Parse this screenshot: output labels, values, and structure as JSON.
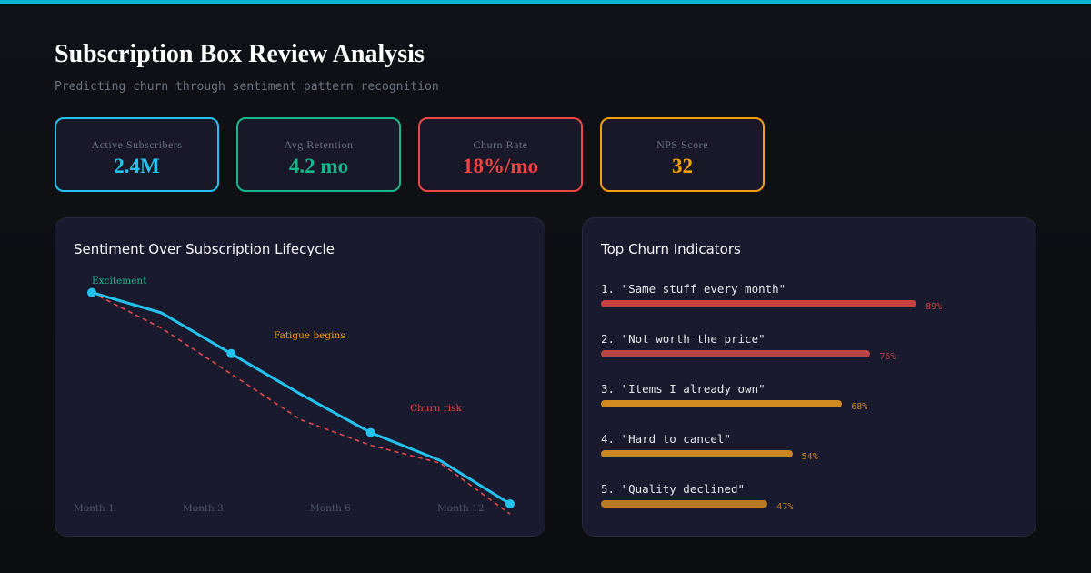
{
  "header": {
    "title": "Subscription Box Review Analysis",
    "subtitle": "Predicting churn through sentiment pattern recognition"
  },
  "kpis": [
    {
      "label": "Active Subscribers",
      "value": "2.4M",
      "color": "#22c3ee"
    },
    {
      "label": "Avg Retention",
      "value": "4.2 mo",
      "color": "#14b88a"
    },
    {
      "label": "Churn Rate",
      "value": "18%/mo",
      "color": "#ef4444"
    },
    {
      "label": "NPS Score",
      "value": "32",
      "color": "#f59e0b"
    }
  ],
  "colors": {
    "accent": "#06b6d4",
    "sentiment_line": "#22c3ee",
    "predicted_line": "#e04a4a",
    "annotation_excitement": "#14b88a",
    "annotation_fatigue": "#f59e0b",
    "annotation_churn": "#ef4444"
  },
  "chart_data": [
    {
      "type": "line",
      "title": "Sentiment Over Subscription Lifecycle",
      "x_tick_labels": [
        "Month 1",
        "Month 3",
        "Month 6",
        "Month 12"
      ],
      "series": [
        {
          "style": "solid",
          "color": "#22c3ee",
          "values": [
            0.78,
            0.7,
            0.54,
            0.38,
            0.23,
            0.12,
            -0.05
          ],
          "markers": [
            0,
            2,
            4,
            6
          ]
        },
        {
          "style": "dashed",
          "color": "#e04a4a",
          "values": [
            0.78,
            0.64,
            0.46,
            0.28,
            0.18,
            0.11,
            -0.09
          ]
        }
      ],
      "annotations": [
        {
          "text": "Excitement",
          "color": "#14b88a"
        },
        {
          "text": "Fatigue begins",
          "color": "#f59e0b"
        },
        {
          "text": "Churn risk",
          "color": "#ef4444"
        }
      ],
      "grid": false,
      "legend": "none"
    },
    {
      "type": "bar",
      "orientation": "horizontal",
      "title": "Top Churn Indicators",
      "categories": [
        "1. \"Same stuff every month\"",
        "2. \"Not worth the price\"",
        "3. \"Items I already own\"",
        "4. \"Hard to cancel\"",
        "5. \"Quality declined\""
      ],
      "values": [
        89,
        76,
        68,
        54,
        47
      ],
      "value_labels": [
        "89%",
        "76%",
        "68%",
        "54%",
        "47%"
      ],
      "colors": [
        "#c94040",
        "#b84444",
        "#d18a1f",
        "#c98622",
        "#b97a25"
      ]
    }
  ]
}
